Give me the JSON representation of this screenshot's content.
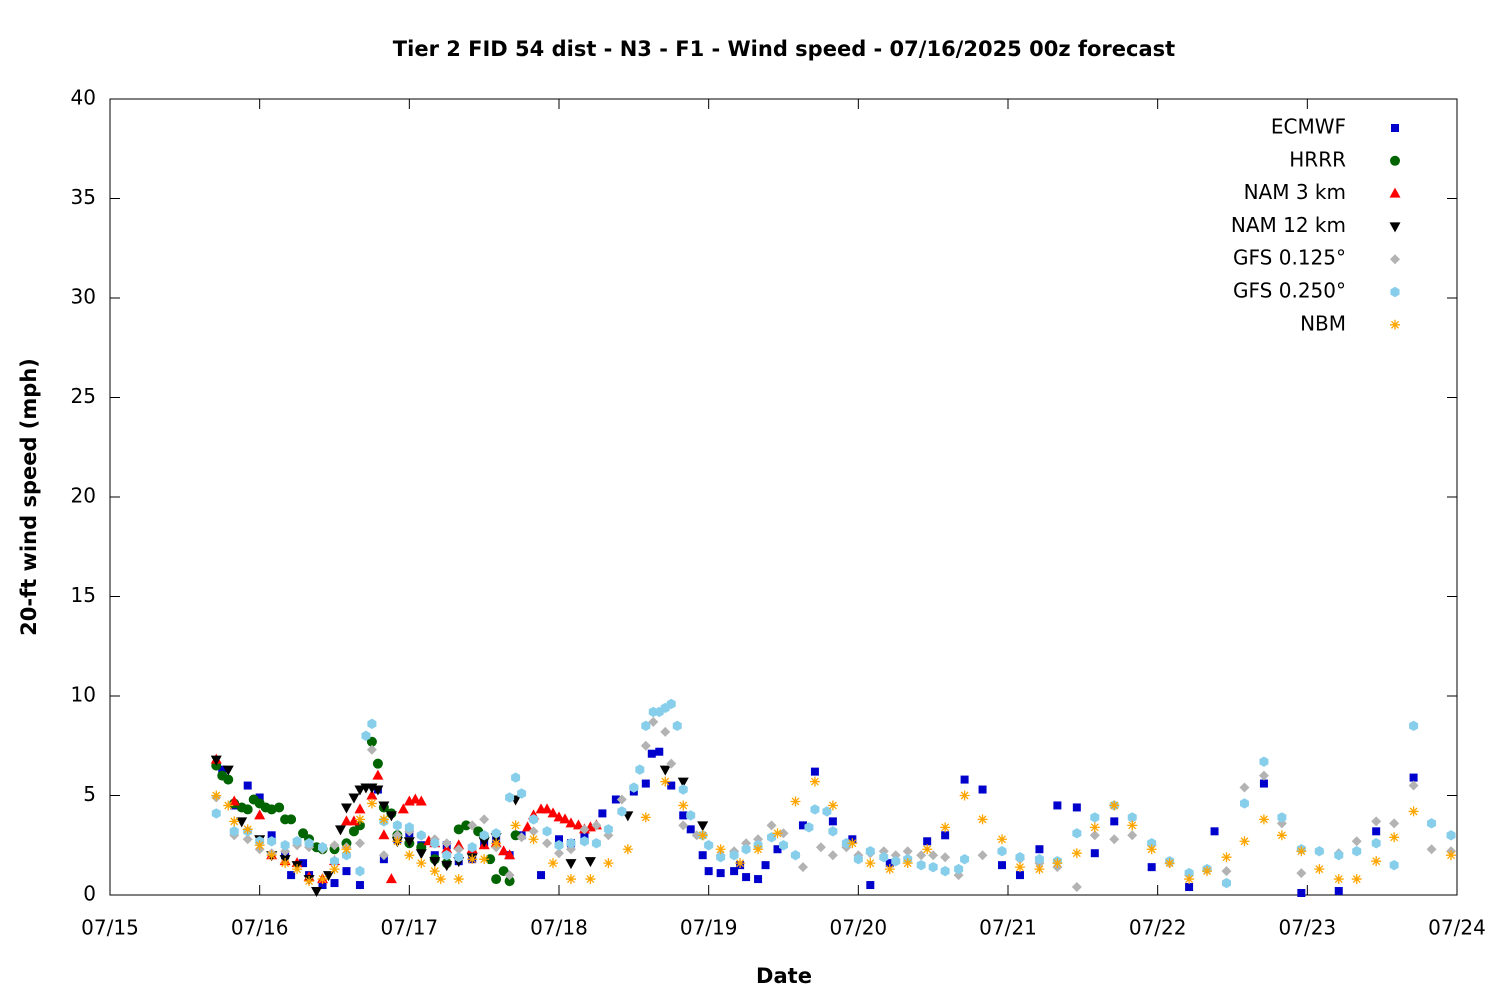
{
  "chart_data": {
    "type": "scatter",
    "title": "Tier 2 FID 54 dist - N3 - F1 - Wind speed - 07/16/2025 00z forecast",
    "x_label": "Date",
    "y_label": "20-ft wind speed (mph)",
    "xlim": [
      15,
      24
    ],
    "ylim": [
      0,
      40
    ],
    "xticks": [
      {
        "value": 15,
        "label": "07/15"
      },
      {
        "value": 16,
        "label": "07/16"
      },
      {
        "value": 17,
        "label": "07/17"
      },
      {
        "value": 18,
        "label": "07/18"
      },
      {
        "value": 19,
        "label": "07/19"
      },
      {
        "value": 20,
        "label": "07/20"
      },
      {
        "value": 21,
        "label": "07/21"
      },
      {
        "value": 22,
        "label": "07/22"
      },
      {
        "value": 23,
        "label": "07/23"
      },
      {
        "value": 24,
        "label": "07/24"
      }
    ],
    "yticks": [
      0,
      5,
      10,
      15,
      20,
      25,
      30,
      35,
      40
    ],
    "grid": false,
    "legend": "top-right",
    "series": [
      {
        "name": "ECMWF",
        "color": "#0000cc",
        "marker": "square",
        "x": [
          15.75,
          15.83,
          15.92,
          16.0,
          16.08,
          16.17,
          16.21,
          16.29,
          16.33,
          16.42,
          16.5,
          16.58,
          16.67,
          16.79,
          16.83,
          16.92,
          17.0,
          17.08,
          17.17,
          17.25,
          17.33,
          17.42,
          17.5,
          17.58,
          17.67,
          17.75,
          17.88,
          18.0,
          18.08,
          18.17,
          18.29,
          18.38,
          18.5,
          18.58,
          18.62,
          18.67,
          18.75,
          18.83,
          18.88,
          18.96,
          19.0,
          19.08,
          19.17,
          19.21,
          19.25,
          19.33,
          19.38,
          19.46,
          19.63,
          19.71,
          19.83,
          19.96,
          20.08,
          20.21,
          20.46,
          20.58,
          20.71,
          20.83,
          20.96,
          21.08,
          21.21,
          21.33,
          21.46,
          21.58,
          21.71,
          21.96,
          22.21,
          22.38,
          22.71,
          22.96,
          23.21,
          23.46,
          23.71
        ],
        "values": [
          6.3,
          4.5,
          5.5,
          4.9,
          3.0,
          2.0,
          1.0,
          1.6,
          1.0,
          0.5,
          0.6,
          1.2,
          0.5,
          5.3,
          1.8,
          2.8,
          3.1,
          2.5,
          2.0,
          2.5,
          1.7,
          1.8,
          2.6,
          2.8,
          2.0,
          3.0,
          1.0,
          2.8,
          2.6,
          3.0,
          4.1,
          4.8,
          5.2,
          5.6,
          7.1,
          7.2,
          5.5,
          4.0,
          3.3,
          2.0,
          1.2,
          1.1,
          1.2,
          1.5,
          0.9,
          0.8,
          1.5,
          2.3,
          3.5,
          6.2,
          3.7,
          2.8,
          0.5,
          1.6,
          2.7,
          3.0,
          5.8,
          5.3,
          1.5,
          1.0,
          2.3,
          4.5,
          4.4,
          2.1,
          3.7,
          1.4,
          0.4,
          3.2,
          5.6,
          0.1,
          0.2,
          3.2,
          5.9
        ]
      },
      {
        "name": "HRRR",
        "color": "#006400",
        "marker": "circle",
        "x": [
          15.71,
          15.75,
          15.79,
          15.83,
          15.88,
          15.92,
          15.96,
          16.0,
          16.04,
          16.08,
          16.13,
          16.17,
          16.21,
          16.29,
          16.33,
          16.38,
          16.42,
          16.5,
          16.58,
          16.63,
          16.67,
          16.75,
          16.79,
          16.83,
          16.88,
          16.92,
          17.0,
          17.08,
          17.17,
          17.25,
          17.33,
          17.38,
          17.46,
          17.5,
          17.54,
          17.58,
          17.63,
          17.67,
          17.71
        ],
        "values": [
          6.5,
          6.0,
          5.8,
          4.6,
          4.4,
          4.3,
          4.8,
          4.6,
          4.4,
          4.3,
          4.4,
          3.8,
          3.8,
          3.1,
          2.8,
          2.4,
          2.3,
          2.3,
          2.6,
          3.2,
          3.5,
          7.7,
          6.6,
          4.4,
          4.1,
          3.0,
          2.6,
          2.4,
          1.8,
          1.6,
          3.3,
          3.5,
          3.2,
          2.9,
          1.8,
          0.8,
          1.2,
          0.7,
          3.0
        ]
      },
      {
        "name": "NAM 3 km",
        "color": "#ff0000",
        "marker": "triangle-up",
        "x": [
          15.71,
          15.83,
          16.0,
          16.08,
          16.17,
          16.25,
          16.33,
          16.42,
          16.5,
          16.58,
          16.63,
          16.67,
          16.75,
          16.79,
          16.83,
          16.88,
          16.96,
          17.0,
          17.04,
          17.08,
          17.13,
          17.17,
          17.25,
          17.33,
          17.42,
          17.5,
          17.58,
          17.63,
          17.67,
          17.79,
          17.83,
          17.88,
          17.92,
          17.96,
          18.0,
          18.04,
          18.08,
          18.13,
          18.17,
          18.21,
          18.25
        ],
        "values": [
          6.8,
          4.7,
          4.0,
          2.0,
          1.7,
          1.6,
          0.9,
          0.8,
          1.7,
          3.7,
          3.7,
          4.3,
          5.0,
          6.0,
          3.0,
          0.8,
          4.3,
          4.7,
          4.8,
          4.7,
          2.7,
          2.6,
          2.3,
          2.5,
          2.3,
          2.5,
          2.6,
          2.2,
          2.0,
          3.4,
          4.0,
          4.3,
          4.3,
          4.1,
          3.9,
          3.8,
          3.6,
          3.5,
          3.3,
          3.4,
          3.5
        ]
      },
      {
        "name": "NAM 12 km",
        "color": "#000000",
        "marker": "triangle-down",
        "x": [
          15.71,
          15.79,
          15.88,
          16.0,
          16.08,
          16.17,
          16.25,
          16.33,
          16.38,
          16.46,
          16.54,
          16.58,
          16.63,
          16.67,
          16.71,
          16.75,
          16.79,
          16.83,
          16.88,
          16.92,
          17.0,
          17.08,
          17.17,
          17.25,
          17.33,
          17.42,
          17.5,
          17.58,
          17.71,
          18.08,
          18.21,
          18.46,
          18.71,
          18.83,
          18.96
        ],
        "values": [
          6.8,
          6.3,
          3.7,
          2.8,
          2.0,
          1.8,
          1.5,
          0.8,
          0.2,
          1.0,
          3.3,
          4.4,
          4.9,
          5.3,
          5.4,
          5.4,
          5.3,
          4.5,
          4.0,
          2.7,
          2.7,
          2.1,
          1.7,
          1.5,
          1.7,
          1.9,
          2.7,
          2.9,
          4.8,
          1.6,
          1.7,
          4.0,
          6.3,
          5.7,
          3.5
        ]
      },
      {
        "name": "GFS 0.125°",
        "color": "#b3b3b3",
        "marker": "diamond",
        "x": [
          15.71,
          15.83,
          15.92,
          16.0,
          16.08,
          16.17,
          16.25,
          16.33,
          16.42,
          16.5,
          16.58,
          16.67,
          16.75,
          16.83,
          16.92,
          17.0,
          17.08,
          17.17,
          17.25,
          17.33,
          17.42,
          17.5,
          17.58,
          17.67,
          17.75,
          17.83,
          17.92,
          18.0,
          18.08,
          18.17,
          18.25,
          18.33,
          18.42,
          18.5,
          18.58,
          18.63,
          18.71,
          18.75,
          18.83,
          18.92,
          19.0,
          19.08,
          19.17,
          19.25,
          19.33,
          19.42,
          19.5,
          19.58,
          19.63,
          19.75,
          19.83,
          19.92,
          20.0,
          20.08,
          20.17,
          20.25,
          20.33,
          20.42,
          20.5,
          20.58,
          20.67,
          20.83,
          20.96,
          21.08,
          21.21,
          21.33,
          21.46,
          21.58,
          21.71,
          21.83,
          21.96,
          22.08,
          22.21,
          22.33,
          22.46,
          22.58,
          22.71,
          22.83,
          22.96,
          23.08,
          23.21,
          23.33,
          23.46,
          23.58,
          23.71,
          23.83,
          23.96
        ],
        "values": [
          4.9,
          3.0,
          2.8,
          2.3,
          2.1,
          2.2,
          2.5,
          2.4,
          2.3,
          2.5,
          2.4,
          2.6,
          7.3,
          2.0,
          3.0,
          3.2,
          3.0,
          2.8,
          2.6,
          2.3,
          3.5,
          3.8,
          2.4,
          1.0,
          2.9,
          3.2,
          2.6,
          2.1,
          2.3,
          3.3,
          3.5,
          3.0,
          4.8,
          5.4,
          7.5,
          8.7,
          8.2,
          6.6,
          3.5,
          3.0,
          2.5,
          2.0,
          2.2,
          2.6,
          2.8,
          3.5,
          3.1,
          2.0,
          1.4,
          2.4,
          2.0,
          2.4,
          2.0,
          2.1,
          2.2,
          2.0,
          2.2,
          2.0,
          2.0,
          1.9,
          1.0,
          2.0,
          2.2,
          1.8,
          1.6,
          1.4,
          0.4,
          3.0,
          2.8,
          3.0,
          2.5,
          1.6,
          1.0,
          1.3,
          1.2,
          5.4,
          6.0,
          3.6,
          1.1,
          2.2,
          2.1,
          2.7,
          3.7,
          3.6,
          5.5,
          2.3,
          2.2
        ]
      },
      {
        "name": "GFS 0.250°",
        "color": "#87ceeb",
        "marker": "hexagon",
        "x": [
          15.71,
          15.83,
          15.92,
          16.0,
          16.08,
          16.17,
          16.25,
          16.33,
          16.42,
          16.5,
          16.58,
          16.67,
          16.71,
          16.75,
          16.83,
          16.92,
          17.0,
          17.08,
          17.17,
          17.25,
          17.33,
          17.42,
          17.5,
          17.58,
          17.67,
          17.71,
          17.75,
          17.83,
          17.92,
          18.0,
          18.08,
          18.17,
          18.25,
          18.33,
          18.42,
          18.5,
          18.54,
          18.58,
          18.63,
          18.67,
          18.71,
          18.75,
          18.79,
          18.83,
          18.88,
          18.96,
          19.0,
          19.08,
          19.17,
          19.25,
          19.33,
          19.42,
          19.5,
          19.58,
          19.67,
          19.71,
          19.79,
          19.83,
          19.92,
          20.0,
          20.08,
          20.17,
          20.25,
          20.33,
          20.42,
          20.5,
          20.58,
          20.67,
          20.71,
          20.96,
          21.08,
          21.21,
          21.33,
          21.46,
          21.58,
          21.71,
          21.83,
          21.96,
          22.08,
          22.21,
          22.33,
          22.46,
          22.58,
          22.71,
          22.83,
          22.96,
          23.08,
          23.21,
          23.33,
          23.46,
          23.58,
          23.71,
          23.83,
          23.96
        ],
        "values": [
          4.1,
          3.2,
          3.2,
          2.7,
          2.7,
          2.5,
          2.7,
          2.6,
          2.4,
          1.7,
          2.0,
          1.2,
          8.0,
          8.6,
          3.7,
          3.5,
          3.4,
          3.0,
          2.6,
          2.0,
          1.9,
          2.4,
          3.0,
          3.1,
          4.9,
          5.9,
          5.1,
          3.8,
          3.2,
          2.5,
          2.6,
          2.7,
          2.6,
          3.3,
          4.2,
          5.4,
          6.3,
          8.5,
          9.2,
          9.2,
          9.4,
          9.6,
          8.5,
          5.3,
          4.0,
          3.0,
          2.5,
          1.9,
          2.0,
          2.3,
          2.5,
          2.9,
          2.5,
          2.0,
          3.4,
          4.3,
          4.2,
          3.2,
          2.6,
          1.8,
          2.2,
          1.9,
          1.7,
          1.8,
          1.5,
          1.4,
          1.2,
          1.3,
          1.8,
          2.2,
          1.9,
          1.8,
          1.7,
          3.1,
          3.9,
          4.5,
          3.9,
          2.6,
          1.7,
          1.1,
          1.3,
          0.6,
          4.6,
          6.7,
          3.9,
          2.3,
          2.2,
          2.0,
          2.2,
          2.6,
          1.5,
          8.5,
          3.6,
          3.0
        ]
      },
      {
        "name": "NBM",
        "color": "#ffa500",
        "marker": "star",
        "x": [
          15.71,
          15.79,
          15.83,
          15.92,
          16.0,
          16.08,
          16.17,
          16.25,
          16.33,
          16.42,
          16.5,
          16.58,
          16.67,
          16.75,
          16.83,
          16.92,
          17.0,
          17.08,
          17.17,
          17.21,
          17.33,
          17.42,
          17.5,
          17.58,
          17.71,
          17.83,
          17.96,
          18.08,
          18.21,
          18.33,
          18.46,
          18.58,
          18.71,
          18.83,
          18.96,
          19.08,
          19.21,
          19.33,
          19.46,
          19.58,
          19.71,
          19.83,
          19.96,
          20.08,
          20.21,
          20.33,
          20.46,
          20.58,
          20.71,
          20.83,
          20.96,
          21.08,
          21.21,
          21.33,
          21.46,
          21.58,
          21.71,
          21.83,
          21.96,
          22.08,
          22.21,
          22.33,
          22.46,
          22.58,
          22.71,
          22.83,
          22.96,
          23.08,
          23.21,
          23.33,
          23.46,
          23.58,
          23.71,
          23.96
        ],
        "values": [
          5.0,
          4.5,
          3.7,
          3.3,
          2.5,
          2.0,
          1.6,
          1.3,
          0.7,
          0.8,
          1.3,
          2.3,
          3.8,
          4.6,
          3.8,
          2.7,
          2.0,
          1.6,
          1.2,
          0.8,
          0.8,
          1.8,
          1.8,
          2.6,
          3.5,
          2.8,
          1.6,
          0.8,
          0.8,
          1.6,
          2.3,
          3.9,
          5.7,
          4.5,
          3.0,
          2.3,
          1.6,
          2.3,
          3.1,
          4.7,
          5.7,
          4.5,
          2.6,
          1.6,
          1.3,
          1.6,
          2.3,
          3.4,
          5.0,
          3.8,
          2.8,
          1.4,
          1.3,
          1.6,
          2.1,
          3.4,
          4.5,
          3.5,
          2.3,
          1.6,
          0.8,
          1.2,
          1.9,
          2.7,
          3.8,
          3.0,
          2.2,
          1.3,
          0.8,
          0.8,
          1.7,
          2.9,
          4.2,
          2.0
        ]
      }
    ]
  }
}
